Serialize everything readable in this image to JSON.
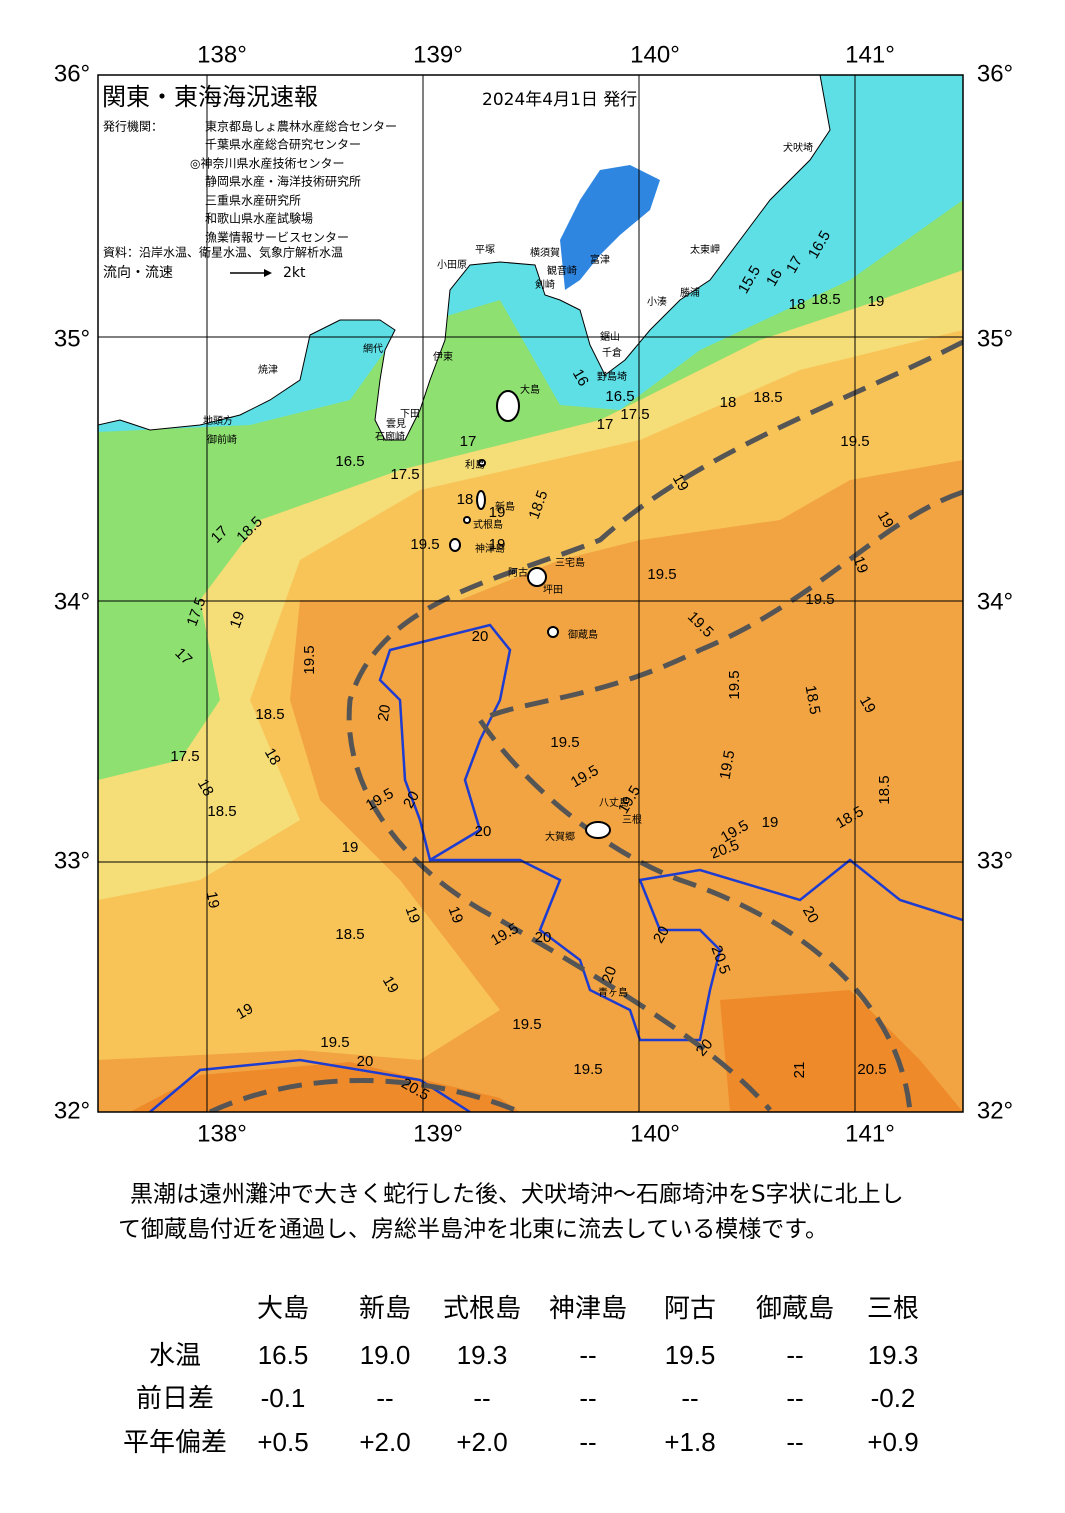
{
  "header": {
    "title": "関東・東海海況速報",
    "date": "2024年4月1日 発行",
    "issuer_label": "発行機関：",
    "issuers": [
      "東京都島しょ農林水産総合センター",
      "千葉県水産総合研究センター",
      "◎神奈川県水産技術センター",
      "静岡県水産・海洋技術研究所",
      "三重県水産研究所",
      "和歌山県水産試験場",
      "漁業情報サービスセンター"
    ],
    "source": "資料：沿岸水温、衛星水温、気象庁解析水温",
    "flow_label": "流向・流速",
    "flow_scale": "2kt"
  },
  "axes": {
    "lon": [
      "138°",
      "139°",
      "140°",
      "141°"
    ],
    "lat": [
      "36°",
      "35°",
      "34°",
      "33°",
      "32°"
    ]
  },
  "places": [
    "犬吠埼",
    "太東岬",
    "勝浦",
    "小湊",
    "鋸山",
    "千倉",
    "野島埼",
    "富津",
    "観音崎",
    "剣崎",
    "横須賀",
    "平塚",
    "小田原",
    "伊東",
    "網代",
    "下田",
    "雲見",
    "石廊崎",
    "焼津",
    "地頭方",
    "御前崎",
    "大島",
    "利島",
    "新島",
    "式根島",
    "神津島",
    "三宅島",
    "阿古",
    "坪田",
    "御蔵島",
    "八丈島",
    "三根",
    "大賀郷",
    "青ヶ島"
  ],
  "contours": [
    "16.5",
    "17.5",
    "17",
    "16",
    "16.5",
    "17",
    "17.5",
    "18",
    "18.5",
    "19.5",
    "19",
    "18.5",
    "18",
    "16.5",
    "17",
    "16",
    "15.5",
    "19",
    "18.5",
    "19",
    "18",
    "19.5",
    "19",
    "19.5",
    "17",
    "18.5",
    "17.5",
    "19",
    "17",
    "19.5",
    "20",
    "19.5",
    "19.5",
    "19",
    "19",
    "19.5",
    "18.5",
    "19",
    "18.5",
    "20",
    "19.5",
    "18",
    "17.5",
    "19.5",
    "19.5",
    "18",
    "18.5",
    "19.5",
    "20",
    "19.5",
    "18.5",
    "20",
    "18.5",
    "19",
    "19.5",
    "20.5",
    "19",
    "19",
    "19",
    "19",
    "18.5",
    "19.5",
    "20",
    "20",
    "20",
    "20.5",
    "20",
    "19",
    "19",
    "19.5",
    "19.5",
    "20",
    "19.5",
    "20",
    "21",
    "20.5",
    "20.5"
  ],
  "summary": [
    "黒潮は遠州灘沖で大きく蛇行した後、犬吠埼沖～石廊埼沖をS字状に北上し",
    "て御蔵島付近を通過し、房総半島沖を北東に流去している模様です。"
  ],
  "table": {
    "columns": [
      "大島",
      "新島",
      "式根島",
      "神津島",
      "阿古",
      "御蔵島",
      "三根"
    ],
    "rows": [
      {
        "label": "水温",
        "cells": [
          "16.5",
          "19.0",
          "19.3",
          "--",
          "19.5",
          "--",
          "19.3"
        ]
      },
      {
        "label": "前日差",
        "cells": [
          "-0.1",
          "--",
          "--",
          "--",
          "--",
          "--",
          "-0.2"
        ]
      },
      {
        "label": "平年偏差",
        "cells": [
          "+0.5",
          "+2.0",
          "+2.0",
          "--",
          "+1.8",
          "--",
          "+0.9"
        ]
      }
    ]
  }
}
